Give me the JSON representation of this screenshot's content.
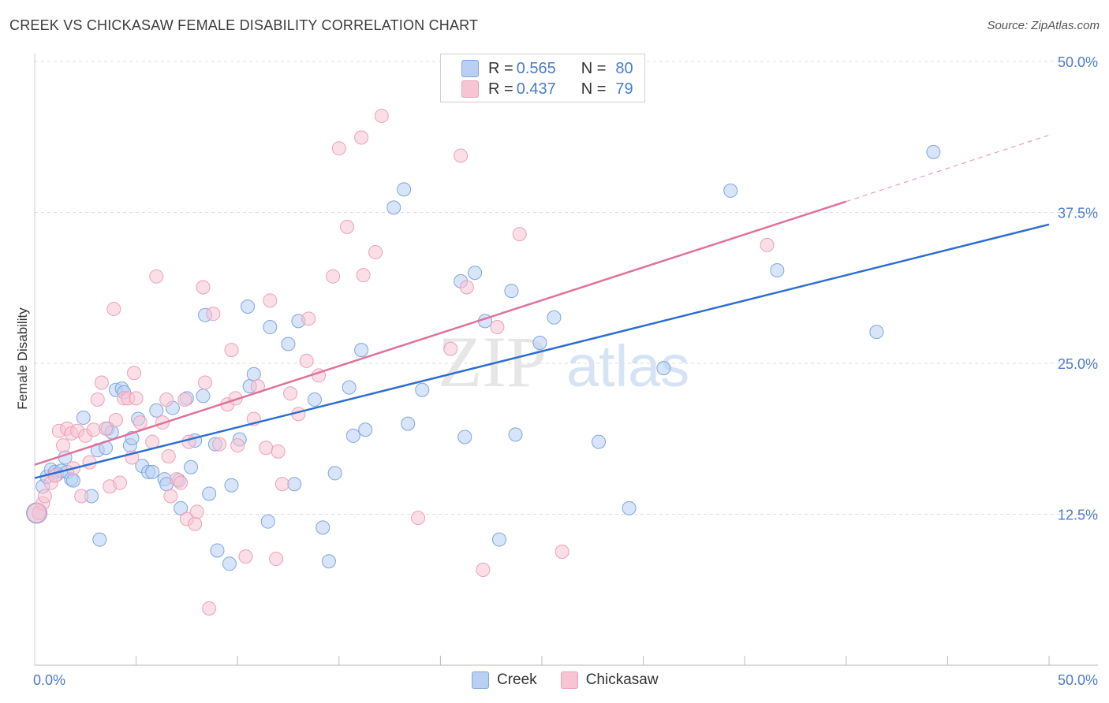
{
  "title": "CREEK VS CHICKASAW FEMALE DISABILITY CORRELATION CHART",
  "source": "Source: ZipAtlas.com",
  "watermark": {
    "zip": "ZIP",
    "atlas": "atlas"
  },
  "legend": {
    "rows": [
      {
        "r_label": "R =",
        "r_value": "0.565",
        "n_label": "N =",
        "n_value": "80"
      },
      {
        "r_label": "R =",
        "r_value": "0.437",
        "n_label": "N =",
        "n_value": "79"
      }
    ]
  },
  "bottom_legend": [
    "Creek",
    "Chickasaw"
  ],
  "colors": {
    "creek_fill": "#b8d0f2",
    "creek_stroke": "#7ea6e0",
    "creek_line": "#2e6fcc",
    "chickasaw_fill": "#f7c4d4",
    "chickasaw_stroke": "#ee9fb8",
    "chickasaw_line": "#e0729a",
    "tick_text": "#4a7cc9",
    "grid": "#dddddd"
  },
  "chart_data": {
    "type": "scatter",
    "title": "CREEK VS CHICKASAW FEMALE DISABILITY CORRELATION CHART",
    "xlabel": "",
    "ylabel": "Female Disability",
    "xlim": [
      0,
      50
    ],
    "ylim": [
      0,
      50
    ],
    "x_tick_labels": [
      "0.0%",
      "50.0%"
    ],
    "y_ticks": [
      12.5,
      25.0,
      37.5,
      50.0
    ],
    "y_tick_labels": [
      "12.5%",
      "25.0%",
      "37.5%",
      "50.0%"
    ],
    "grid": true,
    "legend_position": "top-center",
    "series": [
      {
        "name": "Creek",
        "R": 0.565,
        "N": 80,
        "trend": {
          "x": [
            0,
            50
          ],
          "y": [
            15.5,
            36.5
          ]
        },
        "points": [
          [
            0.2,
            12.6
          ],
          [
            0.4,
            14.8
          ],
          [
            0.6,
            15.6
          ],
          [
            0.8,
            16.2
          ],
          [
            1.0,
            16.0
          ],
          [
            1.1,
            15.8
          ],
          [
            1.3,
            16.1
          ],
          [
            1.5,
            17.2
          ],
          [
            1.6,
            16.0
          ],
          [
            1.8,
            15.4
          ],
          [
            1.9,
            15.3
          ],
          [
            2.4,
            20.5
          ],
          [
            2.8,
            14.0
          ],
          [
            3.1,
            17.8
          ],
          [
            3.2,
            10.4
          ],
          [
            3.5,
            18.0
          ],
          [
            3.6,
            19.6
          ],
          [
            3.8,
            19.3
          ],
          [
            4.0,
            22.8
          ],
          [
            4.3,
            22.9
          ],
          [
            4.4,
            22.6
          ],
          [
            4.7,
            18.2
          ],
          [
            4.8,
            18.8
          ],
          [
            5.1,
            20.4
          ],
          [
            5.3,
            16.5
          ],
          [
            5.6,
            16.0
          ],
          [
            5.8,
            16.0
          ],
          [
            6.0,
            21.1
          ],
          [
            6.4,
            15.4
          ],
          [
            6.5,
            15.0
          ],
          [
            6.8,
            21.3
          ],
          [
            7.1,
            15.3
          ],
          [
            7.2,
            13.0
          ],
          [
            7.5,
            22.1
          ],
          [
            7.7,
            16.4
          ],
          [
            7.9,
            18.6
          ],
          [
            8.3,
            22.3
          ],
          [
            8.4,
            29.0
          ],
          [
            8.6,
            14.2
          ],
          [
            8.9,
            18.3
          ],
          [
            9.0,
            9.5
          ],
          [
            9.6,
            8.4
          ],
          [
            9.7,
            14.9
          ],
          [
            10.1,
            18.7
          ],
          [
            10.5,
            29.7
          ],
          [
            10.6,
            23.1
          ],
          [
            10.8,
            24.1
          ],
          [
            11.5,
            11.9
          ],
          [
            11.6,
            28.0
          ],
          [
            12.5,
            26.6
          ],
          [
            12.8,
            15.0
          ],
          [
            13.0,
            28.5
          ],
          [
            13.8,
            22.0
          ],
          [
            14.2,
            11.4
          ],
          [
            14.5,
            8.6
          ],
          [
            14.8,
            15.9
          ],
          [
            15.5,
            23.0
          ],
          [
            15.7,
            19.0
          ],
          [
            16.1,
            26.1
          ],
          [
            16.3,
            19.5
          ],
          [
            17.7,
            37.9
          ],
          [
            18.2,
            39.4
          ],
          [
            18.4,
            20.0
          ],
          [
            19.1,
            22.8
          ],
          [
            21.0,
            31.8
          ],
          [
            21.2,
            18.9
          ],
          [
            21.7,
            32.5
          ],
          [
            22.2,
            28.5
          ],
          [
            22.9,
            10.4
          ],
          [
            23.5,
            31.0
          ],
          [
            23.7,
            19.1
          ],
          [
            24.9,
            26.7
          ],
          [
            25.6,
            28.8
          ],
          [
            27.8,
            18.5
          ],
          [
            29.3,
            13.0
          ],
          [
            31.0,
            24.6
          ],
          [
            34.3,
            39.3
          ],
          [
            36.6,
            32.7
          ],
          [
            41.5,
            27.6
          ],
          [
            44.3,
            42.5
          ]
        ]
      },
      {
        "name": "Chickasaw",
        "R": 0.437,
        "N": 79,
        "trend": {
          "x": [
            0,
            40
          ],
          "y": [
            16.6,
            38.4
          ]
        },
        "trend_extension": {
          "x": [
            40,
            50
          ],
          "y": [
            38.4,
            43.9
          ]
        },
        "points": [
          [
            0.2,
            12.6
          ],
          [
            0.4,
            13.4
          ],
          [
            0.5,
            14.0
          ],
          [
            0.8,
            15.1
          ],
          [
            1.0,
            15.7
          ],
          [
            1.2,
            19.4
          ],
          [
            1.4,
            18.2
          ],
          [
            1.6,
            19.6
          ],
          [
            1.8,
            19.2
          ],
          [
            1.9,
            16.3
          ],
          [
            2.1,
            19.4
          ],
          [
            2.3,
            14.0
          ],
          [
            2.5,
            19.0
          ],
          [
            2.7,
            16.8
          ],
          [
            2.9,
            19.5
          ],
          [
            3.1,
            22.0
          ],
          [
            3.3,
            23.4
          ],
          [
            3.5,
            19.6
          ],
          [
            3.7,
            14.8
          ],
          [
            3.9,
            29.5
          ],
          [
            4.0,
            20.3
          ],
          [
            4.2,
            15.1
          ],
          [
            4.4,
            22.1
          ],
          [
            4.6,
            22.1
          ],
          [
            4.8,
            17.2
          ],
          [
            4.9,
            24.2
          ],
          [
            5.0,
            22.1
          ],
          [
            5.2,
            20.1
          ],
          [
            5.8,
            18.5
          ],
          [
            6.0,
            32.2
          ],
          [
            6.3,
            20.1
          ],
          [
            6.5,
            22.0
          ],
          [
            6.6,
            17.3
          ],
          [
            6.7,
            14.0
          ],
          [
            7.0,
            15.4
          ],
          [
            7.2,
            15.1
          ],
          [
            7.4,
            22.0
          ],
          [
            7.5,
            12.1
          ],
          [
            7.6,
            18.5
          ],
          [
            7.9,
            11.7
          ],
          [
            8.0,
            12.7
          ],
          [
            8.3,
            31.3
          ],
          [
            8.4,
            23.4
          ],
          [
            8.6,
            4.7
          ],
          [
            8.8,
            29.1
          ],
          [
            9.1,
            18.3
          ],
          [
            9.5,
            21.6
          ],
          [
            9.7,
            26.1
          ],
          [
            9.9,
            22.1
          ],
          [
            10.0,
            18.2
          ],
          [
            10.4,
            9.0
          ],
          [
            10.8,
            20.4
          ],
          [
            11.0,
            23.1
          ],
          [
            11.4,
            18.0
          ],
          [
            11.6,
            30.2
          ],
          [
            11.9,
            8.8
          ],
          [
            12.0,
            17.7
          ],
          [
            12.2,
            15.0
          ],
          [
            12.6,
            22.5
          ],
          [
            13.0,
            20.8
          ],
          [
            13.4,
            25.2
          ],
          [
            13.5,
            28.7
          ],
          [
            14.0,
            24.0
          ],
          [
            14.7,
            32.2
          ],
          [
            15.0,
            42.8
          ],
          [
            15.4,
            36.3
          ],
          [
            16.1,
            43.7
          ],
          [
            16.2,
            32.3
          ],
          [
            16.8,
            34.2
          ],
          [
            17.1,
            45.5
          ],
          [
            18.9,
            12.2
          ],
          [
            20.5,
            26.2
          ],
          [
            21.0,
            42.2
          ],
          [
            21.3,
            31.3
          ],
          [
            22.1,
            7.9
          ],
          [
            22.8,
            28.0
          ],
          [
            23.9,
            35.7
          ],
          [
            26.0,
            9.4
          ],
          [
            36.1,
            34.8
          ]
        ]
      }
    ]
  }
}
